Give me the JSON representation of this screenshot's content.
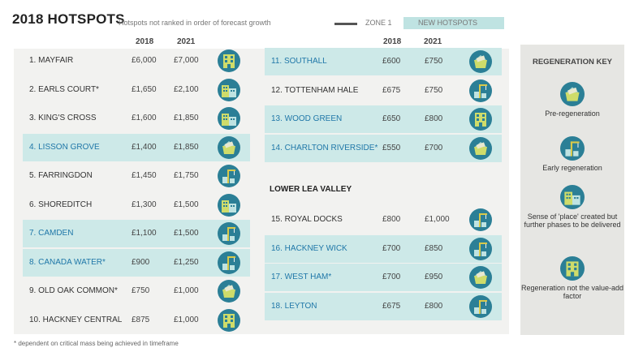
{
  "title": "2018 HOTSPOTS",
  "subtitle": "Hotspots not ranked in order of forecast growth",
  "legend": {
    "zone1": "ZONE 1",
    "new_hotspots": "NEW HOTSPOTS"
  },
  "colors": {
    "highlight": "#cde9e8",
    "icon_bg": "#2b7f96",
    "link": "#1f77a8",
    "panel": "#f2f2f0",
    "key_bg": "#e6e6e3"
  },
  "years": {
    "y1": "2018",
    "y2": "2021"
  },
  "left_rows": [
    {
      "name": "1. MAYFAIR",
      "v2018": "£6,000",
      "v2021": "£7,000",
      "highlight": false,
      "icon": "regeneration-not-factor-icon"
    },
    {
      "name": "2. EARLS COURT*",
      "v2018": "£1,650",
      "v2021": "£2,100",
      "highlight": false,
      "icon": "sense-of-place-icon"
    },
    {
      "name": "3. KING'S CROSS",
      "v2018": "£1,600",
      "v2021": "£1,850",
      "highlight": false,
      "icon": "sense-of-place-icon"
    },
    {
      "name": "4. LISSON GROVE",
      "v2018": "£1,400",
      "v2021": "£1,850",
      "highlight": true,
      "icon": "pre-regeneration-icon"
    },
    {
      "name": "5. FARRINGDON",
      "v2018": "£1,450",
      "v2021": "£1,750",
      "highlight": false,
      "icon": "early-regeneration-icon"
    },
    {
      "name": "6. SHOREDITCH",
      "v2018": "£1,300",
      "v2021": "£1,500",
      "highlight": false,
      "icon": "sense-of-place-icon"
    },
    {
      "name": "7. CAMDEN",
      "v2018": "£1,100",
      "v2021": "£1,500",
      "highlight": true,
      "icon": "early-regeneration-icon"
    },
    {
      "name": "8. CANADA WATER*",
      "v2018": "£900",
      "v2021": "£1,250",
      "highlight": true,
      "icon": "early-regeneration-icon"
    },
    {
      "name": "9. OLD OAK COMMON*",
      "v2018": "£750",
      "v2021": "£1,000",
      "highlight": false,
      "icon": "pre-regeneration-icon"
    },
    {
      "name": "10. HACKNEY CENTRAL",
      "v2018": "£875",
      "v2021": "£1,000",
      "highlight": false,
      "icon": "regeneration-not-factor-icon"
    }
  ],
  "right_rows_top": [
    {
      "name": "11. SOUTHALL",
      "v2018": "£600",
      "v2021": "£750",
      "highlight": true,
      "icon": "pre-regeneration-icon"
    },
    {
      "name": "12. TOTTENHAM HALE",
      "v2018": "£675",
      "v2021": "£750",
      "highlight": false,
      "icon": "early-regeneration-icon"
    },
    {
      "name": "13. WOOD GREEN",
      "v2018": "£650",
      "v2021": "£800",
      "highlight": true,
      "icon": "regeneration-not-factor-icon"
    },
    {
      "name": "14. CHARLTON RIVERSIDE*",
      "v2018": "£550",
      "v2021": "£700",
      "highlight": true,
      "icon": "pre-regeneration-icon"
    }
  ],
  "section_heading": "LOWER LEA VALLEY",
  "right_rows_bottom": [
    {
      "name": "15. ROYAL DOCKS",
      "v2018": "£800",
      "v2021": "£1,000",
      "highlight": false,
      "icon": "early-regeneration-icon"
    },
    {
      "name": "16. HACKNEY WICK",
      "v2018": "£700",
      "v2021": "£850",
      "highlight": true,
      "icon": "early-regeneration-icon"
    },
    {
      "name": "17. WEST HAM*",
      "v2018": "£700",
      "v2021": "£950",
      "highlight": true,
      "icon": "pre-regeneration-icon"
    },
    {
      "name": "18. LEYTON",
      "v2018": "£675",
      "v2021": "£800",
      "highlight": true,
      "icon": "early-regeneration-icon"
    }
  ],
  "key": {
    "title": "REGENERATION KEY",
    "items": [
      {
        "label": "Pre-regeneration",
        "icon": "pre-regeneration-icon"
      },
      {
        "label": "Early regeneration",
        "icon": "early-regeneration-icon"
      },
      {
        "label": "Sense of 'place' created but further phases to be delivered",
        "icon": "sense-of-place-icon"
      },
      {
        "label": "Regeneration not the value-add factor",
        "icon": "regeneration-not-factor-icon"
      }
    ]
  },
  "footnote": "* dependent on critical mass being achieved in timeframe"
}
